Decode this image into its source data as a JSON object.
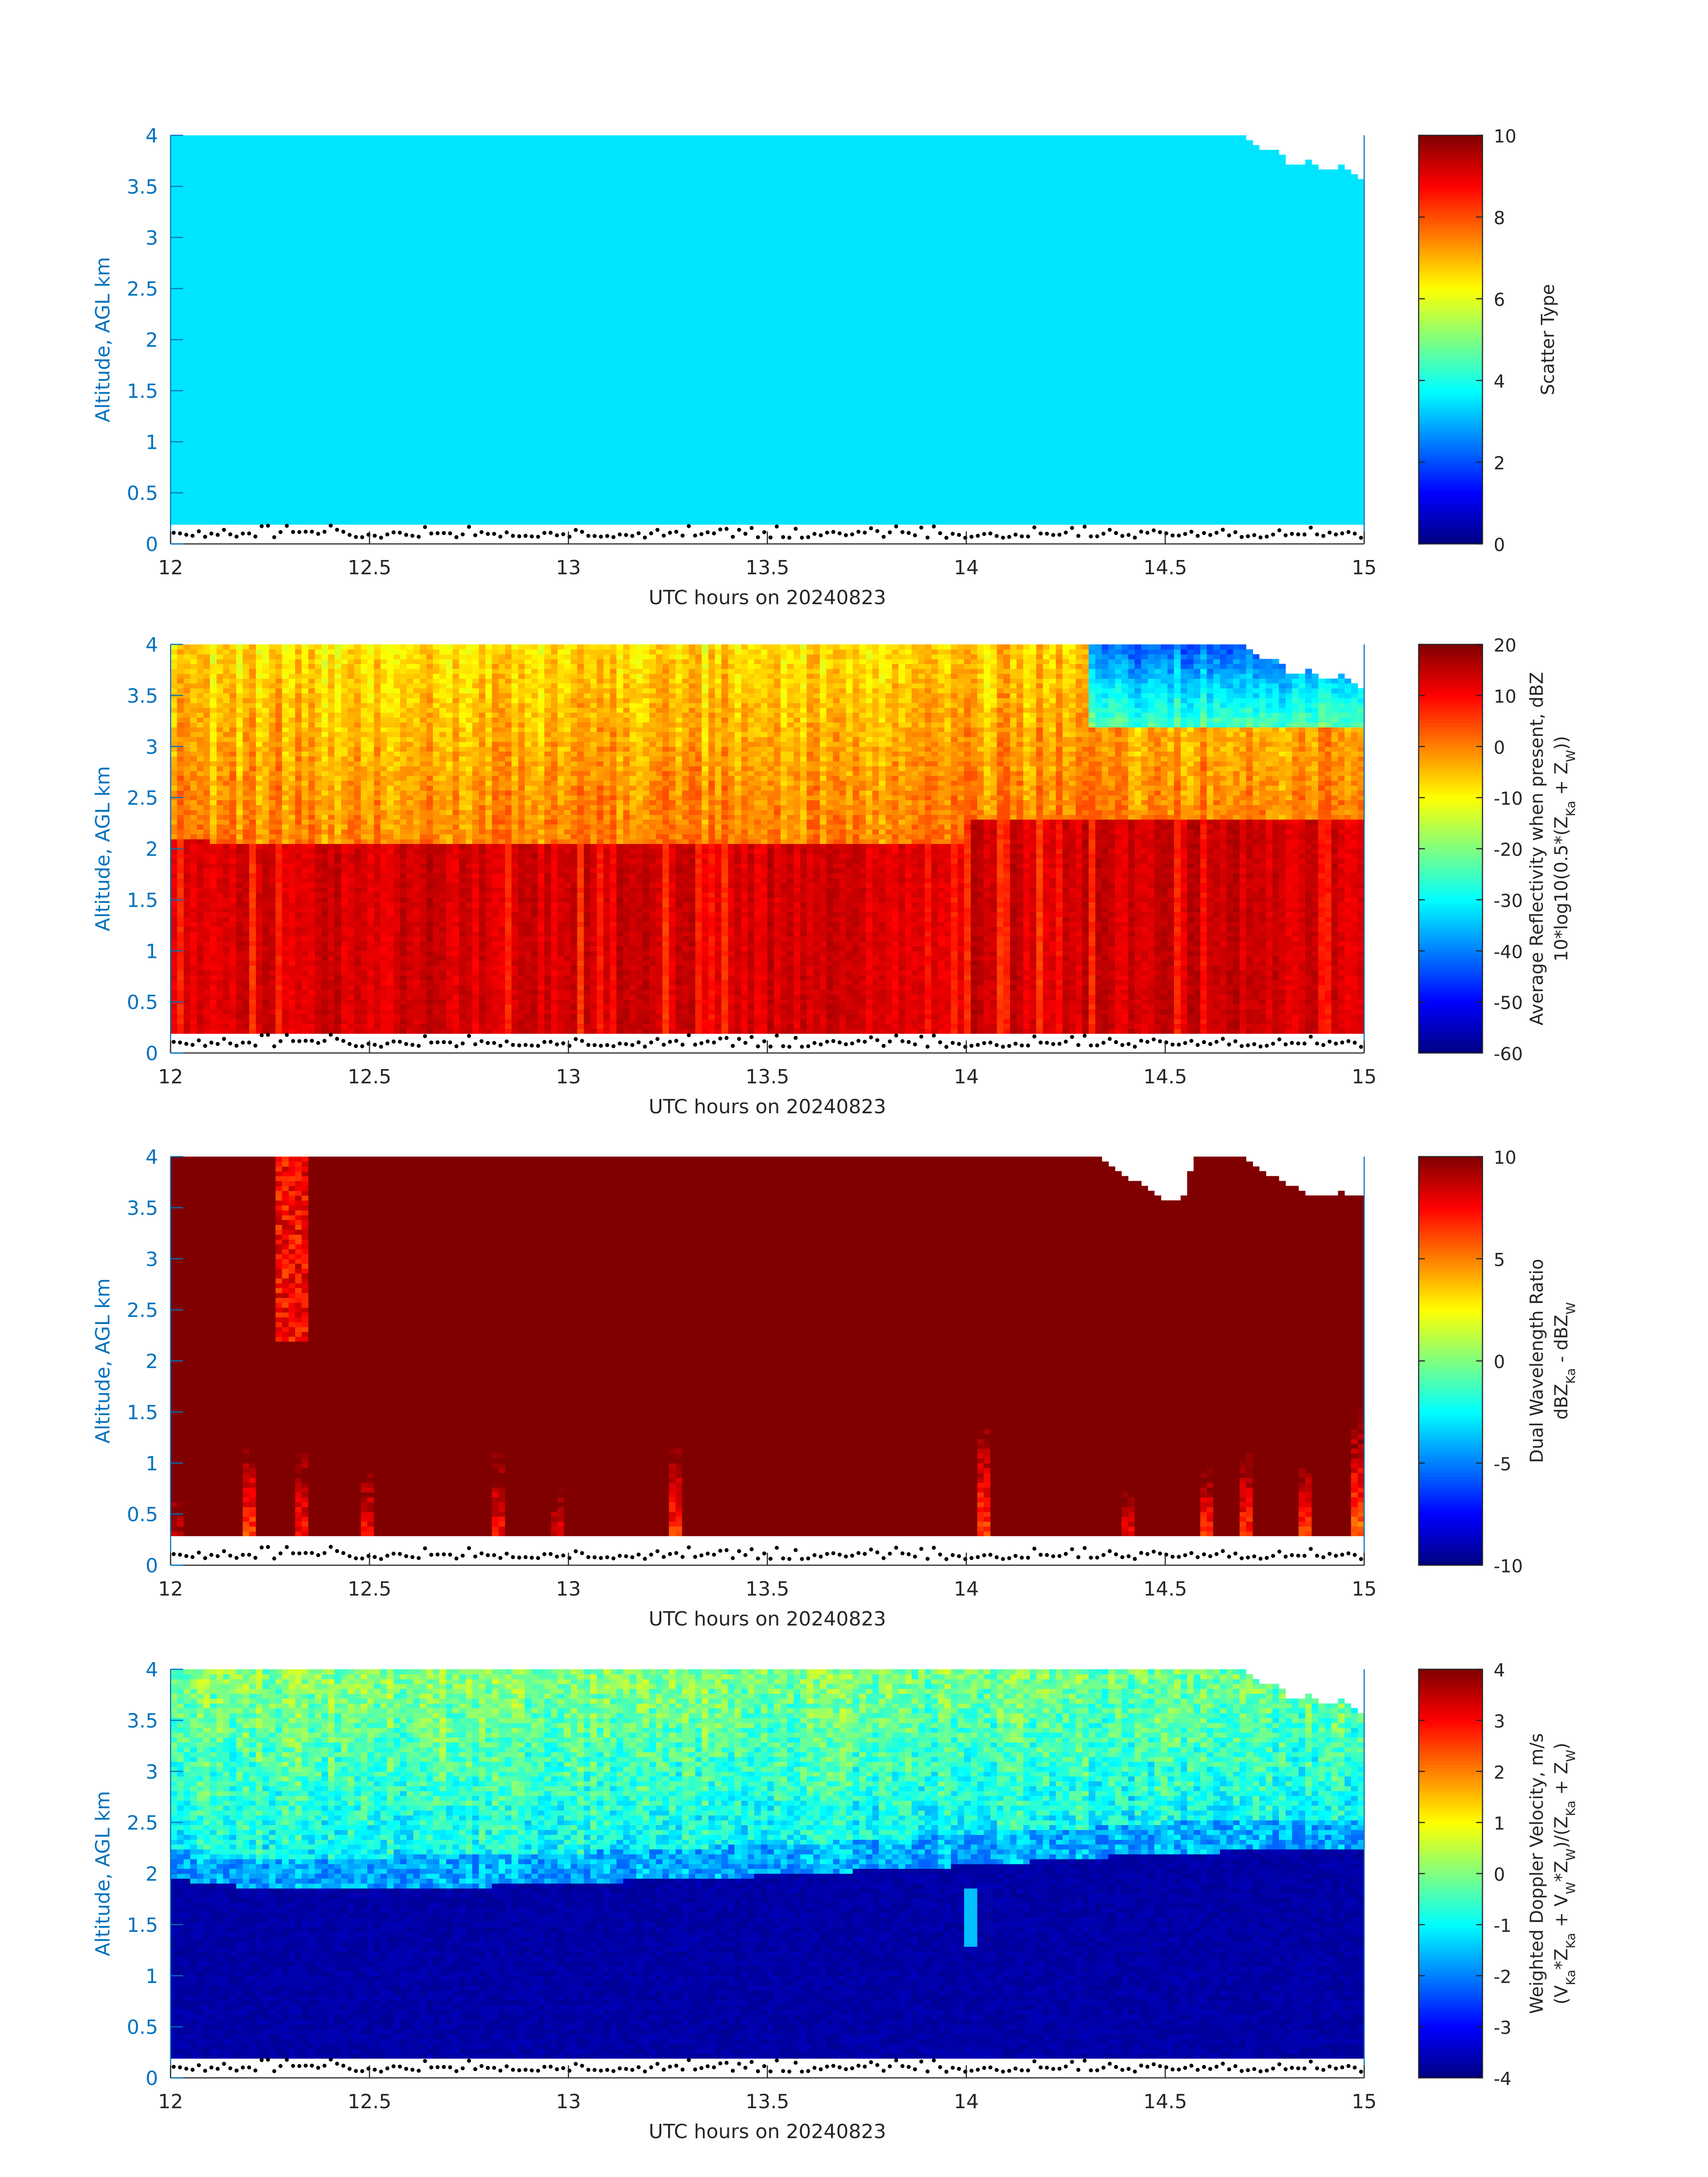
{
  "figure": {
    "background": "#ffffff",
    "tick_color": "#0072bd",
    "text_color": "#262626"
  },
  "chart_data": [
    {
      "type": "heatmap",
      "id": "scatter_type",
      "x_range": [
        12,
        15
      ],
      "y_range": [
        0,
        4
      ],
      "xticks": [
        "12",
        "12.5",
        "13",
        "13.5",
        "14",
        "14.5",
        "15"
      ],
      "yticks": [
        "0",
        "0.5",
        "1",
        "1.5",
        "2",
        "2.5",
        "3",
        "3.5",
        "4"
      ],
      "xlabel": "UTC hours on 20240823",
      "ylabel": "Altitude, AGL km",
      "colorbar": {
        "label": "Scatter Type",
        "label2": "",
        "range": [
          0,
          10
        ],
        "ticks": [
          "0",
          "2",
          "4",
          "6",
          "8",
          "10"
        ]
      },
      "dominant_value": 3.5,
      "blanking_altitude_km": 0.18,
      "cloud_top_km": [
        [
          12,
          4
        ],
        [
          14.7,
          4
        ],
        [
          14.72,
          3.9
        ],
        [
          14.78,
          3.85
        ],
        [
          14.82,
          3.7
        ],
        [
          14.86,
          3.75
        ],
        [
          14.9,
          3.65
        ],
        [
          14.95,
          3.7
        ],
        [
          15,
          3.55
        ]
      ]
    },
    {
      "type": "heatmap",
      "id": "reflectivity",
      "x_range": [
        12,
        15
      ],
      "y_range": [
        0,
        4
      ],
      "xticks": [
        "12",
        "12.5",
        "13",
        "13.5",
        "14",
        "14.5",
        "15"
      ],
      "yticks": [
        "0",
        "0.5",
        "1",
        "1.5",
        "2",
        "2.5",
        "3",
        "3.5",
        "4"
      ],
      "xlabel": "UTC hours on 20240823",
      "ylabel": "Altitude, AGL km",
      "colorbar": {
        "label": "Average Reflectivity when present, dBZ",
        "label2": "10*log10(0.5*(Z_Ka + Z_W))",
        "range": [
          -60,
          20
        ],
        "ticks": [
          "-60",
          "-50",
          "-40",
          "-30",
          "-20",
          "-10",
          "0",
          "10",
          "20"
        ]
      },
      "melting_layer_km": 2.05,
      "values_above_layer_dbz": [
        -15,
        2
      ],
      "values_below_layer_dbz": [
        8,
        14
      ],
      "cloud_top_km": [
        [
          12,
          4
        ],
        [
          14.7,
          4
        ],
        [
          14.72,
          3.9
        ],
        [
          14.78,
          3.85
        ],
        [
          14.82,
          3.7
        ],
        [
          14.86,
          3.75
        ],
        [
          14.9,
          3.65
        ],
        [
          14.95,
          3.7
        ],
        [
          15,
          3.55
        ]
      ]
    },
    {
      "type": "heatmap",
      "id": "dwr",
      "x_range": [
        12,
        15
      ],
      "y_range": [
        0,
        4
      ],
      "xticks": [
        "12",
        "12.5",
        "13",
        "13.5",
        "14",
        "14.5",
        "15"
      ],
      "yticks": [
        "0",
        "0.5",
        "1",
        "1.5",
        "2",
        "2.5",
        "3",
        "3.5",
        "4"
      ],
      "xlabel": "UTC hours on 20240823",
      "ylabel": "Altitude, AGL km",
      "colorbar": {
        "label": "Dual Wavelength Ratio",
        "label2": "dBZ_Ka - dBZ_W",
        "range": [
          -10,
          10
        ],
        "ticks": [
          "-10",
          "-5",
          "0",
          "5",
          "10"
        ]
      },
      "dominant_value": 10,
      "blanking_altitude_km": 0.28,
      "plumes": [
        [
          12.01,
          0.8,
          6
        ],
        [
          12.2,
          1.4,
          4
        ],
        [
          12.33,
          1.3,
          5
        ],
        [
          12.5,
          1.1,
          5
        ],
        [
          12.83,
          1.2,
          5
        ],
        [
          12.97,
          0.9,
          6
        ],
        [
          13.27,
          1.3,
          4
        ],
        [
          14.05,
          1.6,
          4
        ],
        [
          14.4,
          0.8,
          5
        ],
        [
          14.6,
          1.0,
          3
        ],
        [
          14.7,
          1.2,
          4
        ],
        [
          14.85,
          1.1,
          3
        ],
        [
          14.98,
          1.6,
          3
        ]
      ],
      "cloud_top_km": [
        [
          12,
          4
        ],
        [
          14.33,
          4
        ],
        [
          14.38,
          3.85
        ],
        [
          14.45,
          3.7
        ],
        [
          14.5,
          3.55
        ],
        [
          14.55,
          3.6
        ],
        [
          14.57,
          4
        ],
        [
          14.7,
          4
        ],
        [
          14.75,
          3.85
        ],
        [
          14.8,
          3.75
        ],
        [
          14.88,
          3.6
        ],
        [
          14.95,
          3.65
        ],
        [
          15,
          3.6
        ]
      ]
    },
    {
      "type": "heatmap",
      "id": "doppler",
      "x_range": [
        12,
        15
      ],
      "y_range": [
        0,
        4
      ],
      "xticks": [
        "12",
        "12.5",
        "13",
        "13.5",
        "14",
        "14.5",
        "15"
      ],
      "yticks": [
        "0",
        "0.5",
        "1",
        "1.5",
        "2",
        "2.5",
        "3",
        "3.5",
        "4"
      ],
      "xlabel": "UTC hours on 20240823",
      "ylabel": "Altitude, AGL km",
      "colorbar": {
        "label": "Weighted Doppler Velocity, m/s",
        "label2": "(V_Ka*Z_Ka + V_W*Z_W)/(Z_Ka + Z_W)",
        "range": [
          -4,
          4
        ],
        "ticks": [
          "-4",
          "-3",
          "-2",
          "-1",
          "0",
          "1",
          "2",
          "3",
          "4"
        ]
      },
      "melting_layer_km": [
        [
          12,
          1.95
        ],
        [
          12.25,
          1.85
        ],
        [
          12.8,
          1.88
        ],
        [
          13.5,
          1.98
        ],
        [
          14,
          2.08
        ],
        [
          14.5,
          2.2
        ],
        [
          15,
          2.25
        ]
      ],
      "values_above_layer_ms": [
        -1.3,
        0.4
      ],
      "values_below_layer_ms": [
        -3.9,
        -3.5
      ],
      "cloud_top_km": [
        [
          12,
          4
        ],
        [
          14.7,
          4
        ],
        [
          14.72,
          3.9
        ],
        [
          14.78,
          3.85
        ],
        [
          14.82,
          3.7
        ],
        [
          14.86,
          3.75
        ],
        [
          14.9,
          3.65
        ],
        [
          14.95,
          3.7
        ],
        [
          15,
          3.55
        ]
      ]
    }
  ]
}
